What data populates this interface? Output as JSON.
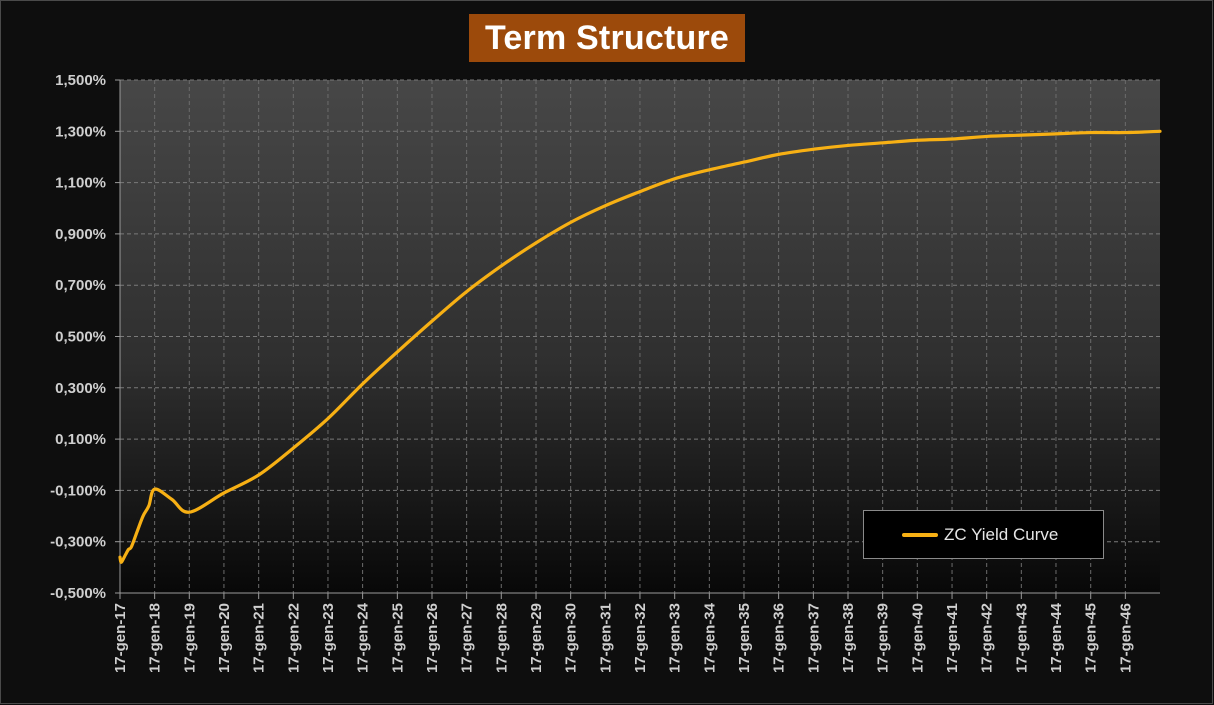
{
  "chart_data": {
    "type": "line",
    "title": "Term Structure",
    "xlabel": "",
    "ylabel": "",
    "x_type": "date",
    "x_tick_labels": [
      "17-gen-17",
      "17-gen-18",
      "17-gen-19",
      "17-gen-20",
      "17-gen-21",
      "17-gen-22",
      "17-gen-23",
      "17-gen-24",
      "17-gen-25",
      "17-gen-26",
      "17-gen-27",
      "17-gen-28",
      "17-gen-29",
      "17-gen-30",
      "17-gen-31",
      "17-gen-32",
      "17-gen-33",
      "17-gen-34",
      "17-gen-35",
      "17-gen-36",
      "17-gen-37",
      "17-gen-38",
      "17-gen-39",
      "17-gen-40",
      "17-gen-41",
      "17-gen-42",
      "17-gen-43",
      "17-gen-44",
      "17-gen-45",
      "17-gen-46"
    ],
    "y_tick_labels": [
      "-0,500%",
      "-0,300%",
      "-0,100%",
      "0,100%",
      "0,300%",
      "0,500%",
      "0,700%",
      "0,900%",
      "1,100%",
      "1,300%",
      "1,500%"
    ],
    "y_ticks": [
      -0.5,
      -0.3,
      -0.1,
      0.1,
      0.3,
      0.5,
      0.7,
      0.9,
      1.1,
      1.3,
      1.5
    ],
    "ylim": [
      -0.5,
      1.5
    ],
    "xlim": [
      "2017-01-17",
      "2047-01-17"
    ],
    "grid": true,
    "legend_position": "bottom-right",
    "series": [
      {
        "name": "ZC Yield Curve",
        "color": "#f7b014",
        "points": [
          [
            "2017-01-17",
            -0.36
          ],
          [
            "2017-01-27",
            -0.38
          ],
          [
            "2017-02-17",
            -0.37
          ],
          [
            "2017-03-17",
            -0.35
          ],
          [
            "2017-04-17",
            -0.33
          ],
          [
            "2017-05-17",
            -0.32
          ],
          [
            "2017-07-17",
            -0.26
          ],
          [
            "2017-09-17",
            -0.2
          ],
          [
            "2017-11-17",
            -0.16
          ],
          [
            "2018-01-17",
            -0.095
          ],
          [
            "2018-07-17",
            -0.135
          ],
          [
            "2019-01-17",
            -0.185
          ],
          [
            "2020-01-17",
            -0.11
          ],
          [
            "2021-01-17",
            -0.04
          ],
          [
            "2022-01-17",
            0.065
          ],
          [
            "2023-01-17",
            0.18
          ],
          [
            "2024-01-17",
            0.315
          ],
          [
            "2025-01-17",
            0.44
          ],
          [
            "2026-01-17",
            0.56
          ],
          [
            "2027-01-17",
            0.675
          ],
          [
            "2028-01-17",
            0.775
          ],
          [
            "2029-01-17",
            0.865
          ],
          [
            "2030-01-17",
            0.945
          ],
          [
            "2031-01-17",
            1.01
          ],
          [
            "2032-01-17",
            1.065
          ],
          [
            "2033-01-17",
            1.115
          ],
          [
            "2034-01-17",
            1.15
          ],
          [
            "2035-01-17",
            1.18
          ],
          [
            "2036-01-17",
            1.21
          ],
          [
            "2037-01-17",
            1.23
          ],
          [
            "2038-01-17",
            1.245
          ],
          [
            "2039-01-17",
            1.255
          ],
          [
            "2040-01-17",
            1.265
          ],
          [
            "2041-01-17",
            1.27
          ],
          [
            "2042-01-17",
            1.28
          ],
          [
            "2043-01-17",
            1.285
          ],
          [
            "2044-01-17",
            1.29
          ],
          [
            "2045-01-17",
            1.295
          ],
          [
            "2046-01-17",
            1.295
          ],
          [
            "2047-01-17",
            1.3
          ]
        ]
      }
    ]
  }
}
